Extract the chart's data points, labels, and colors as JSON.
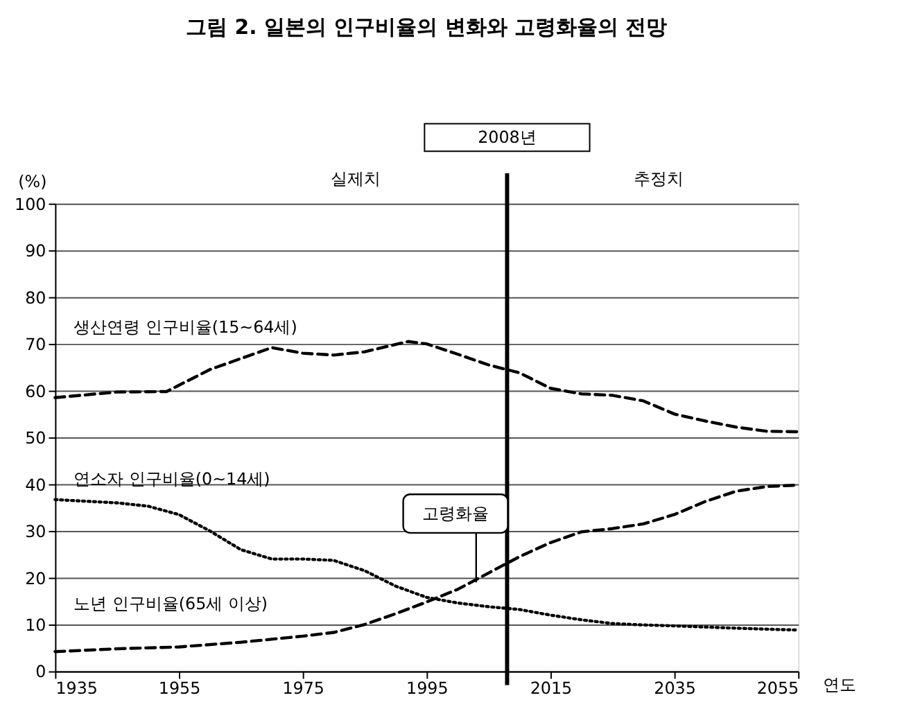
{
  "chart_data": {
    "type": "line",
    "title": "그림 2. 일본의 인구비율의 변화와 고령화율의 전망",
    "xlabel": "연도",
    "ylabel": "(%)",
    "xlim": [
      1935,
      2055
    ],
    "xticks": [
      1935,
      1955,
      1975,
      1995,
      2015,
      2035,
      2055
    ],
    "ylim": [
      0,
      100
    ],
    "yticks": [
      0,
      10,
      20,
      30,
      40,
      50,
      60,
      70,
      80,
      90,
      100
    ],
    "grid": "y",
    "series": [
      {
        "name": "생산연령 인구비율(15~64세)",
        "color": "#000000",
        "line_style": "dashed",
        "x": [
          1935,
          1945,
          1953,
          1960,
          1970,
          1975,
          1980,
          1985,
          1992,
          1995,
          2000,
          2005,
          2010,
          2015,
          2020,
          2025,
          2030,
          2035,
          2040,
          2045,
          2050,
          2055
        ],
        "values": [
          58.5,
          59.7,
          59.8,
          64.5,
          69.2,
          68.0,
          67.6,
          68.3,
          70.5,
          70.0,
          67.8,
          65.5,
          63.8,
          60.5,
          59.3,
          59.0,
          57.8,
          55.0,
          53.5,
          52.2,
          51.3,
          51.2
        ]
      },
      {
        "name": "연소자 인구비율(0~14세)",
        "color": "#000000",
        "line_style": "dotted",
        "x": [
          1935,
          1945,
          1950,
          1955,
          1960,
          1965,
          1970,
          1975,
          1980,
          1985,
          1990,
          1995,
          2000,
          2005,
          2010,
          2015,
          2020,
          2025,
          2030,
          2035,
          2045,
          2055
        ],
        "values": [
          36.7,
          36.0,
          35.3,
          33.5,
          30.0,
          26.0,
          24.0,
          24.0,
          23.7,
          21.5,
          18.2,
          15.8,
          14.6,
          13.8,
          13.2,
          12.0,
          11.0,
          10.2,
          9.9,
          9.7,
          9.2,
          8.8
        ]
      },
      {
        "name": "노년 인구비율(65세 이상)",
        "color": "#000000",
        "line_style": "dashed",
        "x": [
          1935,
          1945,
          1955,
          1965,
          1975,
          1980,
          1985,
          1990,
          1995,
          2000,
          2005,
          2010,
          2015,
          2020,
          2025,
          2030,
          2035,
          2040,
          2045,
          2050,
          2055
        ],
        "values": [
          4.2,
          4.8,
          5.2,
          6.2,
          7.5,
          8.3,
          10.0,
          12.3,
          14.8,
          17.5,
          21.0,
          24.5,
          27.5,
          29.8,
          30.5,
          31.5,
          33.5,
          36.3,
          38.5,
          39.5,
          39.8
        ]
      }
    ],
    "ref_lines": [
      {
        "axis": "x",
        "value": 2008,
        "label": "2008년"
      }
    ],
    "annotations": [
      "실제치",
      "추정치",
      {
        "text": "고령화율",
        "x": 2003,
        "y": 19
      }
    ]
  }
}
